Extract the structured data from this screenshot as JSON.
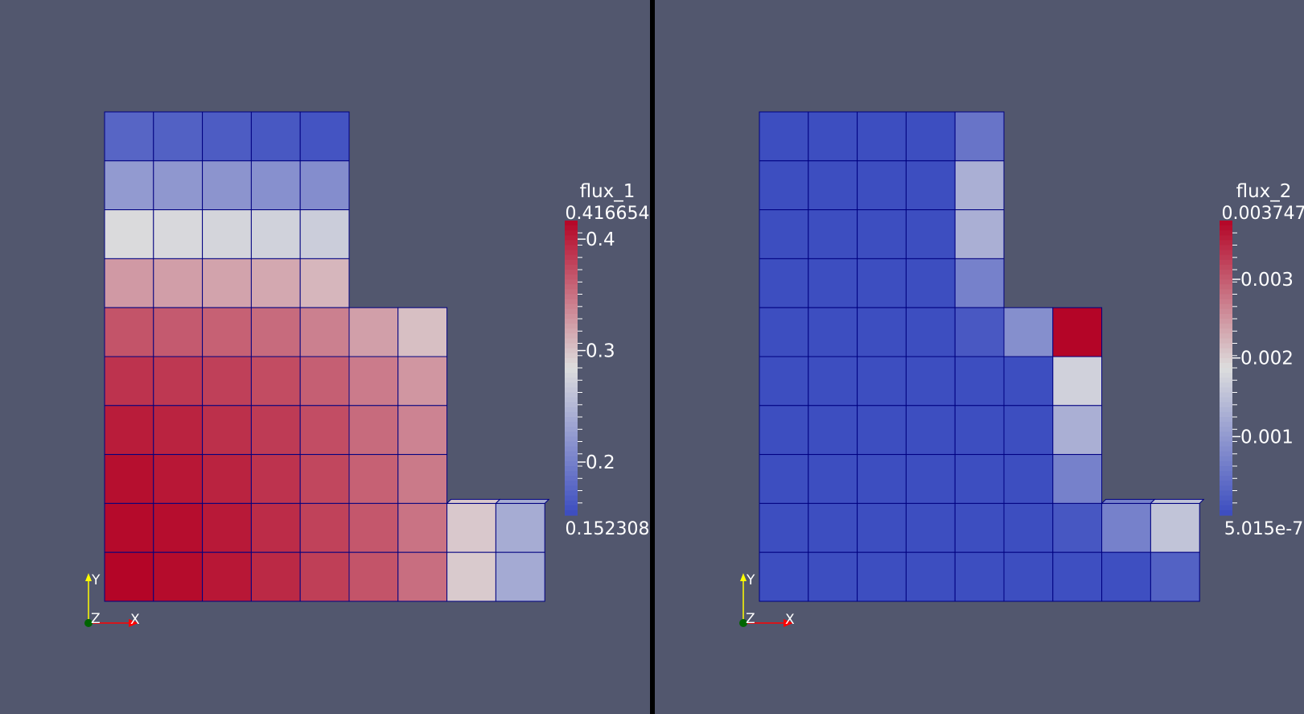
{
  "views": [
    {
      "id": "left",
      "field": "flux_1",
      "range_max_label": "0.416654",
      "range_min_label": "0.152308",
      "range": [
        0.152308,
        0.416654
      ],
      "ticks": [
        {
          "value": 0.2,
          "label": "0.2"
        },
        {
          "value": 0.3,
          "label": "0.3"
        },
        {
          "value": 0.4,
          "label": "0.4"
        }
      ],
      "cells": [
        [
          0.175,
          0.171,
          0.167,
          0.163,
          0.16,
          null,
          null,
          null,
          null
        ],
        [
          0.223,
          0.221,
          0.218,
          0.214,
          0.212,
          null,
          null,
          null,
          null
        ],
        [
          0.282,
          0.28,
          0.277,
          0.274,
          0.27,
          null,
          null,
          null,
          null
        ],
        [
          0.326,
          0.323,
          0.32,
          0.317,
          0.308,
          null,
          null,
          null,
          null
        ],
        [
          0.368,
          0.364,
          0.36,
          0.354,
          0.341,
          0.322,
          0.303,
          null,
          null
        ],
        [
          0.388,
          0.385,
          0.38,
          0.373,
          0.361,
          0.344,
          0.328,
          null,
          null
        ],
        [
          0.402,
          0.398,
          0.39,
          0.383,
          0.372,
          0.354,
          0.339,
          null,
          null
        ],
        [
          0.41,
          0.405,
          0.398,
          0.388,
          0.376,
          0.36,
          0.345,
          null,
          null
        ],
        [
          0.413,
          0.411,
          0.404,
          0.392,
          0.379,
          0.366,
          0.349,
          0.297,
          0.24
        ],
        [
          0.416,
          0.412,
          0.405,
          0.394,
          0.381,
          0.368,
          0.352,
          0.296,
          0.238
        ]
      ]
    },
    {
      "id": "right",
      "field": "flux_2",
      "range_max_label": "0.003747",
      "range_min_label": "5.015e-7",
      "range": [
        5.015e-07,
        0.003747
      ],
      "ticks": [
        {
          "value": 0.001,
          "label": "0.001"
        },
        {
          "value": 0.002,
          "label": "0.002"
        },
        {
          "value": 0.003,
          "label": "0.003"
        }
      ],
      "cells": [
        [
          2e-05,
          2e-05,
          2e-05,
          2e-05,
          0.00052,
          null,
          null,
          null,
          null
        ],
        [
          2e-05,
          2e-05,
          2e-05,
          2e-05,
          0.00128,
          null,
          null,
          null,
          null
        ],
        [
          2e-05,
          2e-05,
          2e-05,
          2e-05,
          0.00128,
          null,
          null,
          null,
          null
        ],
        [
          2e-05,
          2e-05,
          2e-05,
          2e-05,
          0.00068,
          null,
          null,
          null,
          null
        ],
        [
          2e-05,
          2e-05,
          2e-05,
          2e-05,
          0.00016,
          0.00086,
          0.00374,
          null,
          null
        ],
        [
          2e-05,
          2e-05,
          2e-05,
          2e-05,
          2e-05,
          2e-05,
          0.00172,
          null,
          null
        ],
        [
          2e-05,
          2e-05,
          2e-05,
          2e-05,
          2e-05,
          2e-05,
          0.00128,
          null,
          null
        ],
        [
          2e-05,
          2e-05,
          2e-05,
          2e-05,
          2e-05,
          2e-05,
          0.00068,
          null,
          null
        ],
        [
          2e-05,
          2e-05,
          2e-05,
          2e-05,
          2e-05,
          2e-05,
          0.00014,
          0.00068,
          0.00155
        ],
        [
          2e-05,
          2e-05,
          2e-05,
          2e-05,
          2e-05,
          2e-05,
          4e-05,
          4e-05,
          0.00028
        ]
      ]
    }
  ],
  "axes_labels": {
    "y": "Y",
    "z": "Z",
    "x": "X"
  },
  "colors": {
    "background": "#52576e",
    "divider": "#000000",
    "cell_edge": "#000080",
    "colormap": [
      "#3b4cc0",
      "#dddddd",
      "#b40426"
    ],
    "axis_x": "#ff0000",
    "axis_y": "#ffff00",
    "axis_z": "#006400"
  }
}
